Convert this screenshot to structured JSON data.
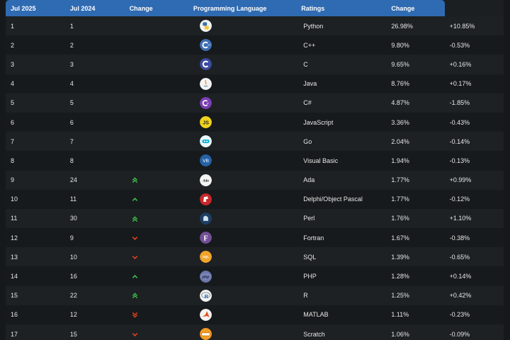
{
  "table": {
    "headers": [
      "Jul 2025",
      "Jul 2024",
      "Change",
      "Programming Language",
      "Ratings",
      "Change"
    ],
    "rows": [
      {
        "rank": "1",
        "prev": "1",
        "trend": "none",
        "icon": "python-icon",
        "lang": "Python",
        "rating": "26.98%",
        "change": "+10.85%"
      },
      {
        "rank": "2",
        "prev": "2",
        "trend": "none",
        "icon": "cpp-icon",
        "lang": "C++",
        "rating": "9.80%",
        "change": "-0.53%"
      },
      {
        "rank": "3",
        "prev": "3",
        "trend": "none",
        "icon": "c-icon",
        "lang": "C",
        "rating": "9.65%",
        "change": "+0.16%"
      },
      {
        "rank": "4",
        "prev": "4",
        "trend": "none",
        "icon": "java-icon",
        "lang": "Java",
        "rating": "8.76%",
        "change": "+0.17%"
      },
      {
        "rank": "5",
        "prev": "5",
        "trend": "none",
        "icon": "csharp-icon",
        "lang": "C#",
        "rating": "4.87%",
        "change": "-1.85%"
      },
      {
        "rank": "6",
        "prev": "6",
        "trend": "none",
        "icon": "javascript-icon",
        "lang": "JavaScript",
        "rating": "3.36%",
        "change": "-0.43%"
      },
      {
        "rank": "7",
        "prev": "7",
        "trend": "none",
        "icon": "go-icon",
        "lang": "Go",
        "rating": "2.04%",
        "change": "-0.14%"
      },
      {
        "rank": "8",
        "prev": "8",
        "trend": "none",
        "icon": "visual-basic-icon",
        "lang": "Visual Basic",
        "rating": "1.94%",
        "change": "-0.13%"
      },
      {
        "rank": "9",
        "prev": "24",
        "trend": "up-double",
        "icon": "ada-icon",
        "lang": "Ada",
        "rating": "1.77%",
        "change": "+0.99%"
      },
      {
        "rank": "10",
        "prev": "11",
        "trend": "up",
        "icon": "delphi-icon",
        "lang": "Delphi/Object Pascal",
        "rating": "1.77%",
        "change": "-0.12%"
      },
      {
        "rank": "11",
        "prev": "30",
        "trend": "up-double",
        "icon": "perl-icon",
        "lang": "Perl",
        "rating": "1.76%",
        "change": "+1.10%"
      },
      {
        "rank": "12",
        "prev": "9",
        "trend": "down",
        "icon": "fortran-icon",
        "lang": "Fortran",
        "rating": "1.67%",
        "change": "-0.38%"
      },
      {
        "rank": "13",
        "prev": "10",
        "trend": "down",
        "icon": "sql-icon",
        "lang": "SQL",
        "rating": "1.39%",
        "change": "-0.65%"
      },
      {
        "rank": "14",
        "prev": "16",
        "trend": "up",
        "icon": "php-icon",
        "lang": "PHP",
        "rating": "1.28%",
        "change": "+0.14%"
      },
      {
        "rank": "15",
        "prev": "22",
        "trend": "up-double",
        "icon": "r-icon",
        "lang": "R",
        "rating": "1.25%",
        "change": "+0.42%"
      },
      {
        "rank": "16",
        "prev": "12",
        "trend": "down-double",
        "icon": "matlab-icon",
        "lang": "MATLAB",
        "rating": "1.11%",
        "change": "-0.23%"
      },
      {
        "rank": "17",
        "prev": "15",
        "trend": "down",
        "icon": "scratch-icon",
        "lang": "Scratch",
        "rating": "1.06%",
        "change": "-0.09%"
      }
    ]
  },
  "colors": {
    "header_bg": "#2f6bb2",
    "trend_up": "#3fbf4a",
    "trend_down": "#e0431c"
  },
  "icon_text": {
    "javascript": "JS",
    "visual_basic": "VB",
    "ada": "Ada",
    "fortran": "F",
    "sql": "SQL",
    "php": "php",
    "r": "R"
  }
}
